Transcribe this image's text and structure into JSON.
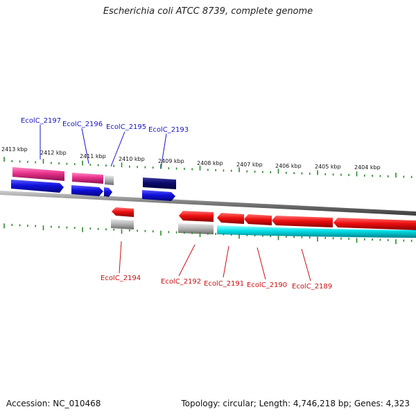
{
  "title": "Escherichia coli ATCC 8739, complete genome",
  "footer": {
    "accession": "Accession: NC_010468",
    "topology": "Topology: circular; Length: 4,746,218 bp; Genes: 4,323"
  },
  "ticks": [
    "2413 kbp",
    "2412 kbp",
    "2411 kbp",
    "2410 kbp",
    "2409 kbp",
    "2408 kbp",
    "2407 kbp",
    "2406 kbp",
    "2405 kbp",
    "2404 kbp"
  ],
  "labels": {
    "forward": [
      "EcolC_2197",
      "EcolC_2196",
      "EcolC_2195",
      "EcolC_2193"
    ],
    "reverse": [
      "EcolC_2194",
      "EcolC_2192",
      "EcolC_2191",
      "EcolC_2190",
      "EcolC_2189"
    ]
  },
  "colors": {
    "forward_cds": "#1010dd",
    "forward_dark": "#0b0b70",
    "forward_pink": "#e8308a",
    "reverse_cds": "#ee1010",
    "reverse_cyan": "#00e0e8",
    "grey_gene": "#b0b0b0",
    "tick_green": "#2a8a2a",
    "backbone": "#8a8a8a"
  }
}
